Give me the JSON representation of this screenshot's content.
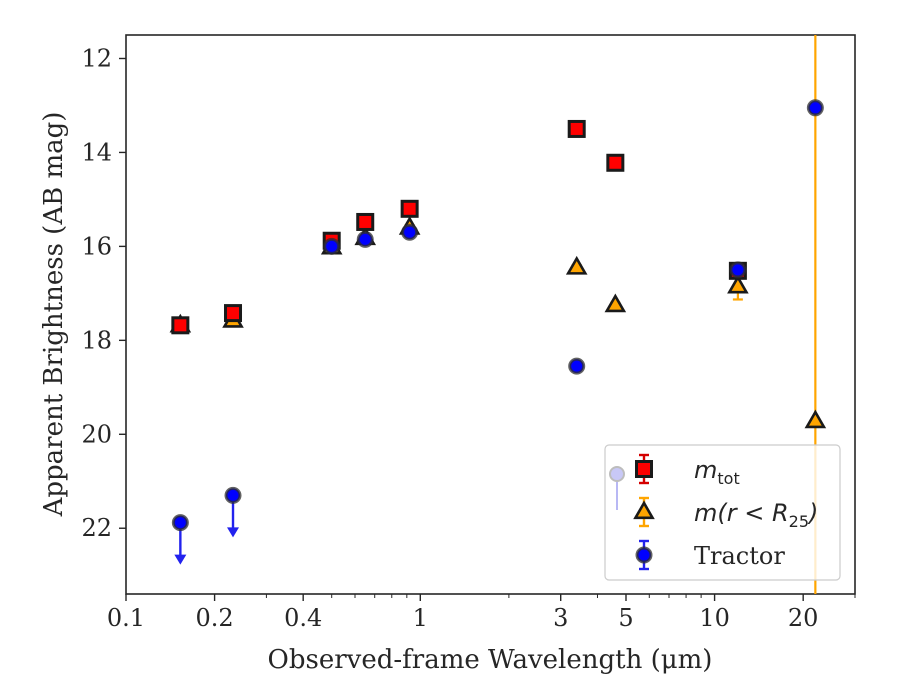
{
  "chart_data": {
    "type": "scatter",
    "xlabel": "Observed-frame Wavelength (μm)",
    "ylabel": "Apparent Brightness (AB mag)",
    "x_scale": "log",
    "xlim": [
      0.1,
      30
    ],
    "ylim": [
      23.4,
      11.5
    ],
    "y_inverted": true,
    "x_ticks": [
      0.1,
      0.2,
      0.4,
      1,
      3,
      5,
      10,
      20
    ],
    "x_tick_labels": [
      "0.1",
      "0.2",
      "0.4",
      "1",
      "3",
      "5",
      "10",
      "20"
    ],
    "y_ticks": [
      12,
      14,
      16,
      18,
      20,
      22
    ],
    "y_tick_labels": [
      "12",
      "14",
      "16",
      "18",
      "20",
      "22"
    ],
    "grid": false,
    "legend_position": "lower right",
    "series": [
      {
        "name": "m_tot",
        "label_main": "m",
        "label_sub": "tot",
        "marker": "square",
        "face_color": "#ff0000",
        "edge_color": "#1a1a1a",
        "error_color": "#d40000",
        "points": [
          {
            "x": 0.153,
            "y": 17.68,
            "err": 0.08
          },
          {
            "x": 0.231,
            "y": 17.42,
            "err": 0.08
          },
          {
            "x": 0.5,
            "y": 15.88,
            "err": 0.05
          },
          {
            "x": 0.65,
            "y": 15.48,
            "err": 0.05
          },
          {
            "x": 0.92,
            "y": 15.2,
            "err": 0.05
          },
          {
            "x": 3.4,
            "y": 13.5,
            "err": 0.05
          },
          {
            "x": 4.6,
            "y": 14.22,
            "err": 0.05
          },
          {
            "x": 12.0,
            "y": 16.52,
            "err": 0.1
          }
        ]
      },
      {
        "name": "m(r < R25)",
        "label_main": "m(r < R",
        "label_sub": "25",
        "label_end": ")",
        "marker": "triangle",
        "face_color": "#ffa500",
        "edge_color": "#1a1a1a",
        "error_color": "#ffa500",
        "points": [
          {
            "x": 0.153,
            "y": 17.68,
            "err": 0.08
          },
          {
            "x": 0.231,
            "y": 17.58,
            "err": 0.08
          },
          {
            "x": 0.5,
            "y": 16.02,
            "err": 0.05
          },
          {
            "x": 0.65,
            "y": 15.82,
            "err": 0.05
          },
          {
            "x": 0.92,
            "y": 15.6,
            "err": 0.05
          },
          {
            "x": 3.4,
            "y": 16.45,
            "err": 0.05
          },
          {
            "x": 4.6,
            "y": 17.25,
            "err": 0.05
          },
          {
            "x": 12.0,
            "y": 16.85,
            "err": 0.28
          },
          {
            "x": 22.0,
            "y": 19.72,
            "err": 9.0
          }
        ]
      },
      {
        "name": "Tractor",
        "label_main": "Tractor",
        "marker": "circle",
        "face_color": "#0000ff",
        "edge_color": "#2e2e2e",
        "error_color": "#2222ee",
        "points": [
          {
            "x": 0.153,
            "y": 21.88,
            "upper_limit": true
          },
          {
            "x": 0.231,
            "y": 21.3,
            "upper_limit": true
          },
          {
            "x": 0.5,
            "y": 16.0,
            "err": 0.05
          },
          {
            "x": 0.65,
            "y": 15.85,
            "err": 0.05
          },
          {
            "x": 0.92,
            "y": 15.7,
            "err": 0.05
          },
          {
            "x": 3.4,
            "y": 18.55,
            "err": 0.05
          },
          {
            "x": 12.0,
            "y": 16.5,
            "err": 0.05
          },
          {
            "x": 22.0,
            "y": 13.05,
            "err": 0.05
          }
        ]
      }
    ]
  }
}
